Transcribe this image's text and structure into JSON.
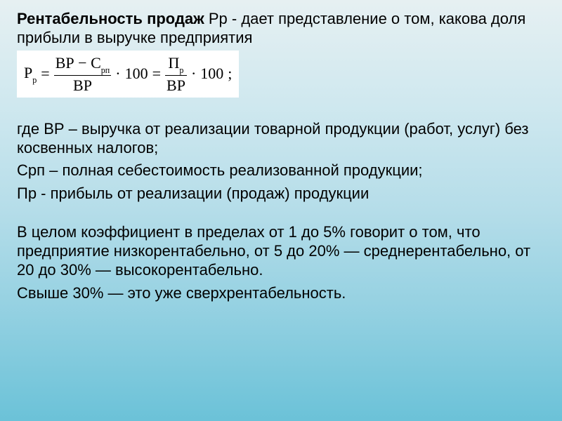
{
  "title_bold": "Рентабельность продаж",
  "title_rest": " Рр - дает представление о том, какова доля прибыли в выручке предприятия",
  "formula": {
    "lhs_base": "Р",
    "lhs_sub": "р",
    "eq1": "=",
    "frac1_num_a": "ВР",
    "frac1_num_minus": " − ",
    "frac1_num_b": "С",
    "frac1_num_b_sub": "рп",
    "frac1_den": "ВР",
    "dot1": "·",
    "hundred1": "100",
    "eq2": "=",
    "frac2_num": "П",
    "frac2_num_sub": "р",
    "frac2_den": "ВР",
    "dot2": "·",
    "hundred2": "100",
    "tail": " ;"
  },
  "defs_line1": "где  ВР – выручка от реализации товарной продукции (работ, услуг) без косвенных налогов;",
  "defs_line2": "Срп – полная себестоимость реализованной продукции;",
  "defs_line3": "Пр - прибыль от реализации (продаж) продукции",
  "body_line1": "В целом коэффициент в пределах от 1 до 5% говорит о том, что предприятие низкорентабельно, от 5 до 20% — среднерентабельно, от 20 до 30% — высокорентабельно.",
  "body_line2": "Свыше 30% — это уже сверхрентабельность.",
  "style": {
    "font_size_pt": 22,
    "formula_bg": "#ffffff",
    "text_color": "#000000",
    "bg_gradient_top": "#e6f0f2",
    "bg_gradient_mid": "#b5dde9",
    "bg_gradient_bottom": "#6bc2d8"
  }
}
